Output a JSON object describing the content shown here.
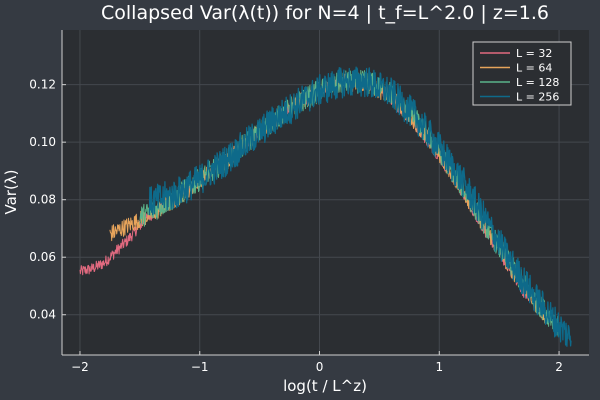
{
  "chart_data": {
    "type": "line",
    "title": "Collapsed Var(λ(t)) for N=4 | t_f=L^2.0 | z=1.6",
    "xlabel": "log(t / L^z)",
    "ylabel": "Var(λ)",
    "xlim": [
      -2.15,
      2.25
    ],
    "ylim": [
      0.026,
      0.139
    ],
    "xticks": [
      -2,
      -1,
      0,
      1,
      2
    ],
    "xtick_labels": [
      "−2",
      "−1",
      "0",
      "1",
      "2"
    ],
    "yticks": [
      0.04,
      0.06,
      0.08,
      0.1,
      0.12
    ],
    "ytick_labels": [
      "0.04",
      "0.06",
      "0.08",
      "0.10",
      "0.12"
    ],
    "grid": true,
    "legend_position": "top-right",
    "series": [
      {
        "name": "L = 32",
        "color": "#e26a80",
        "x": [
          -2.0,
          -1.9,
          -1.8,
          -1.7,
          -1.6,
          -1.5,
          -1.4,
          -1.2,
          -1.0,
          -0.8,
          -0.6,
          -0.4,
          -0.2,
          0.0,
          0.2,
          0.4,
          0.6,
          0.8,
          1.0,
          1.2,
          1.4,
          1.6,
          1.75
        ],
        "y": [
          0.055,
          0.056,
          0.058,
          0.062,
          0.066,
          0.071,
          0.075,
          0.08,
          0.087,
          0.093,
          0.1,
          0.107,
          0.113,
          0.118,
          0.121,
          0.12,
          0.115,
          0.106,
          0.095,
          0.082,
          0.068,
          0.055,
          0.045
        ],
        "spread": 0.004
      },
      {
        "name": "L = 64",
        "color": "#e7a45b",
        "x": [
          -1.75,
          -1.6,
          -1.4,
          -1.2,
          -1.0,
          -0.8,
          -0.6,
          -0.4,
          -0.2,
          0.0,
          0.2,
          0.4,
          0.6,
          0.8,
          1.0,
          1.2,
          1.4,
          1.6,
          1.8,
          1.9
        ],
        "y": [
          0.068,
          0.071,
          0.075,
          0.08,
          0.087,
          0.093,
          0.1,
          0.107,
          0.113,
          0.118,
          0.121,
          0.12,
          0.116,
          0.107,
          0.096,
          0.083,
          0.069,
          0.056,
          0.044,
          0.039
        ],
        "spread": 0.006
      },
      {
        "name": "L = 128",
        "color": "#5bb38a",
        "x": [
          -1.5,
          -1.4,
          -1.2,
          -1.0,
          -0.8,
          -0.6,
          -0.4,
          -0.2,
          0.0,
          0.2,
          0.4,
          0.6,
          0.8,
          1.0,
          1.2,
          1.4,
          1.6,
          1.8,
          2.0
        ],
        "y": [
          0.074,
          0.076,
          0.081,
          0.087,
          0.093,
          0.1,
          0.107,
          0.113,
          0.118,
          0.121,
          0.121,
          0.117,
          0.108,
          0.097,
          0.084,
          0.07,
          0.057,
          0.045,
          0.036
        ],
        "spread": 0.008
      },
      {
        "name": "L = 256",
        "color": "#0e6a8a",
        "x": [
          -1.42,
          -1.2,
          -1.0,
          -0.8,
          -0.6,
          -0.4,
          -0.2,
          0.0,
          0.2,
          0.4,
          0.6,
          0.8,
          1.0,
          1.2,
          1.4,
          1.6,
          1.8,
          2.0,
          2.1
        ],
        "y": [
          0.079,
          0.082,
          0.087,
          0.093,
          0.1,
          0.107,
          0.113,
          0.118,
          0.121,
          0.121,
          0.117,
          0.109,
          0.098,
          0.086,
          0.072,
          0.058,
          0.046,
          0.036,
          0.032
        ],
        "spread": 0.011
      }
    ]
  }
}
